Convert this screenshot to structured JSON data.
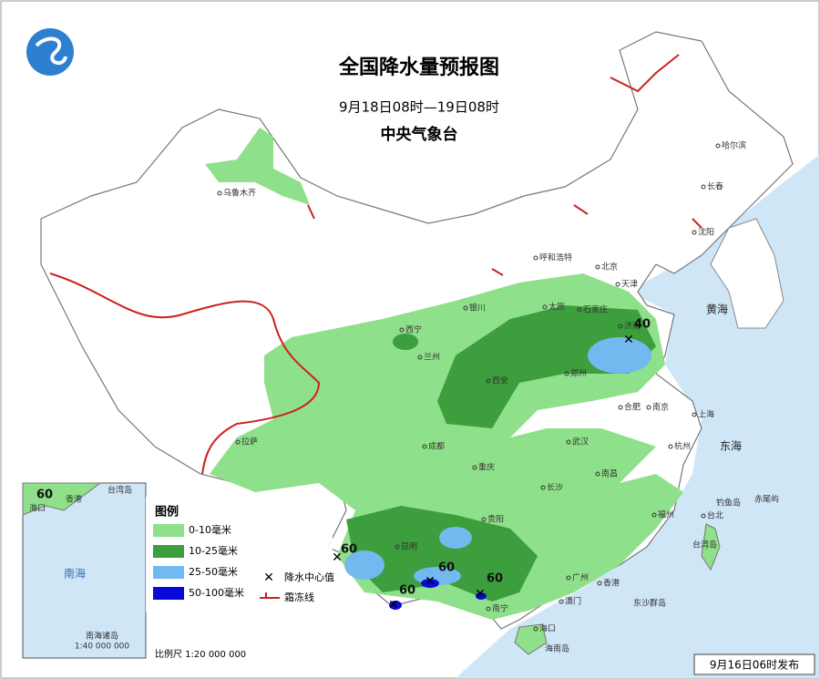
{
  "header": {
    "title": "全国降水量预报图",
    "period": "9月18日08时—19日08时",
    "issuer": "中央气象台"
  },
  "legend": {
    "title": "图例",
    "items": [
      {
        "label": "0-10毫米",
        "color": "#8fe08a"
      },
      {
        "label": "10-25毫米",
        "color": "#3c9e3c"
      },
      {
        "label": "25-50毫米",
        "color": "#72b9ef"
      },
      {
        "label": "50-100毫米",
        "color": "#0a0ad8"
      }
    ],
    "symbols": [
      {
        "label": "降水中心值"
      },
      {
        "label": "霜冻线",
        "color": "#cc2020"
      }
    ]
  },
  "rain_centers": [
    {
      "label": "40"
    },
    {
      "label": "60"
    },
    {
      "label": "60"
    },
    {
      "label": "60"
    },
    {
      "label": "60"
    }
  ],
  "cities": [
    "乌鲁木齐",
    "拉萨",
    "西宁",
    "兰州",
    "银川",
    "呼和浩特",
    "北京",
    "天津",
    "石家庄",
    "太原",
    "济南",
    "郑州",
    "西安",
    "成都",
    "重庆",
    "武汉",
    "合肥",
    "南京",
    "上海",
    "杭州",
    "南昌",
    "长沙",
    "贵阳",
    "昆明",
    "南宁",
    "广州",
    "福州",
    "台北",
    "香港",
    "澳门",
    "海口",
    "沈阳",
    "长春",
    "哈尔滨"
  ],
  "places": [
    "黄海",
    "东海",
    "台湾岛",
    "海南岛",
    "东沙群岛",
    "钓鱼岛",
    "赤尾屿"
  ],
  "inset": {
    "labels": [
      "台湾岛",
      "海口",
      "香港",
      "南海"
    ],
    "rain_center": "60",
    "title": "南海诸岛",
    "scale": "1:40 000 000"
  },
  "scale": "比例尺  1:20 000 000",
  "footer": "9月16日06时发布"
}
